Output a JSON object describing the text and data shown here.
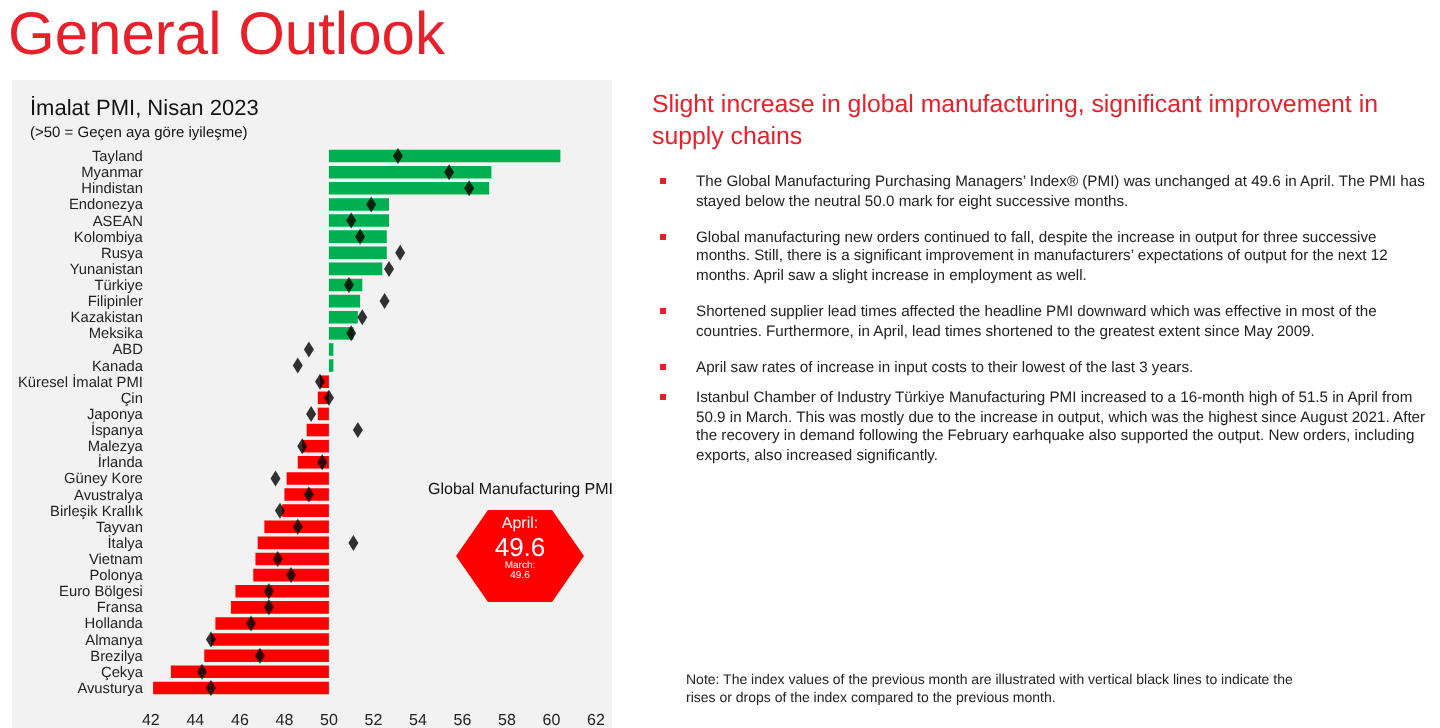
{
  "chart_data": {
    "type": "bar",
    "orientation": "horizontal",
    "title": "İmalat PMI, Nisan 2023",
    "subtitle": "(>50 = Geçen aya göre iyileşme)",
    "categories": [
      "Tayland",
      "Myanmar",
      "Hindistan",
      "Endonezya",
      "ASEAN",
      "Kolombiya",
      "Rusya",
      "Yunanistan",
      "Türkiye",
      "Filipinler",
      "Kazakistan",
      "Meksika",
      "ABD",
      "Kanada",
      "Küresel İmalat PMI",
      "Çin",
      "Japonya",
      "İspanya",
      "Malezya",
      "İrlanda",
      "Güney Kore",
      "Avustralya",
      "Birleşik Krallık",
      "Tayvan",
      "İtalya",
      "Vietnam",
      "Polonya",
      "Euro Bölgesi",
      "Fransa",
      "Hollanda",
      "Almanya",
      "Brezilya",
      "Çekya",
      "Avusturya"
    ],
    "xlim": [
      42,
      62
    ],
    "xticks": [
      42,
      44,
      46,
      48,
      50,
      52,
      54,
      56,
      58,
      60,
      62
    ],
    "series": [
      {
        "type": "bar",
        "base": [
          50,
          50,
          50,
          50,
          50,
          50,
          50,
          50,
          50,
          50,
          50,
          50,
          50,
          50,
          50,
          50,
          50,
          50,
          50,
          50,
          50,
          50,
          50,
          50,
          50,
          50,
          50,
          50,
          50,
          50,
          50,
          50,
          50,
          50
        ],
        "values": [
          10.4,
          7.3,
          7.2,
          2.7,
          2.7,
          2.6,
          2.6,
          2.4,
          1.5,
          1.4,
          1.3,
          1.1,
          0.2,
          0.2,
          -0.4,
          -0.5,
          -0.5,
          -1.0,
          -1.2,
          -1.4,
          -1.9,
          -2.0,
          -2.1,
          -2.9,
          -3.2,
          -3.3,
          -3.4,
          -4.2,
          -4.4,
          -5.1,
          -5.3,
          -5.6,
          -7.1,
          -7.9
        ],
        "colors": [
          "#00b050",
          "#00b050",
          "#00b050",
          "#00b050",
          "#00b050",
          "#00b050",
          "#00b050",
          "#00b050",
          "#00b050",
          "#00b050",
          "#00b050",
          "#00b050",
          "#00b050",
          "#00b050",
          "#ff0000",
          "#ff0000",
          "#ff0000",
          "#ff0000",
          "#ff0000",
          "#ff0000",
          "#ff0000",
          "#ff0000",
          "#ff0000",
          "#ff0000",
          "#ff0000",
          "#ff0000",
          "#ff0000",
          "#ff0000",
          "#ff0000",
          "#ff0000",
          "#ff0000",
          "#ff0000",
          "#ff0000",
          "#ff0000"
        ]
      },
      {
        "type": "scatter",
        "color": "#000000",
        "marker": "diamond",
        "x": [
          "Tayland",
          "Myanmar",
          "Hindistan",
          "Endonezya",
          "ASEAN",
          "Kolombiya",
          "Rusya",
          "Yunanistan",
          "Türkiye",
          "Filipinler",
          "Kazakistan",
          "Meksika",
          "ABD",
          "Kanada",
          "Küresel İmalat PMI",
          "Çin",
          "Japonya",
          "İspanya",
          "Malezya",
          "İrlanda",
          "Güney Kore",
          "Avustralya",
          "Birleşik Krallık",
          "Tayvan",
          "İtalya",
          "Vietnam",
          "Polonya",
          "Euro Bölgesi",
          "Fransa",
          "Hollanda",
          "Almanya",
          "Brezilya",
          "Çekya",
          "Avusturya"
        ],
        "values": [
          53.1,
          55.4,
          56.3,
          51.9,
          51.0,
          51.4,
          53.2,
          52.7,
          50.9,
          52.5,
          51.5,
          51.0,
          49.1,
          48.6,
          49.6,
          50.0,
          49.2,
          51.3,
          48.8,
          49.7,
          47.6,
          49.1,
          47.8,
          48.6,
          51.1,
          47.7,
          48.3,
          47.3,
          47.3,
          46.5,
          44.7,
          46.9,
          44.3,
          44.7
        ]
      }
    ],
    "annotations": [
      "General Outlook",
      "Slight increase in global manufacturing, significant improvement in supply chains",
      "The Global Manufacturing Purchasing Managers’ Index® (PMI) was unchanged at 49.6 in April.  The PMI has stayed below the neutral 50.0 mark for eight successive months.",
      "Global manufacturing new orders continued to fall, despite the increase in output for three successive months. Still, there is a significant improvement in manufacturers’ expectations of output for the next 12 months. April saw a slight increase in employment as well.",
      "Shortened supplier lead times affected the headline PMI downward which was effective in most of the countries. Furthermore, in April, lead times shortened to the greatest extent since May 2009.",
      "April saw rates of increase in input costs to their lowest of the last 3 years.",
      "Istanbul Chamber of Industry Türkiye Manufacturing PMI increased to a 16-month high of 51.5 in April from 50.9 in March. This was mostly due to the increase in output, which was the highest since August 2021. After the recovery in demand following the February earhquake also supported the output.   New orders, including exports, also increased significantly.",
      "Note: The index values of the previous month are illustrated with vertical black lines to indicate the rises or drops of the index compared to the previous month.",
      "Global Manufacturing PMI",
      "April:",
      "49.6",
      "March:",
      "49.6"
    ]
  }
}
